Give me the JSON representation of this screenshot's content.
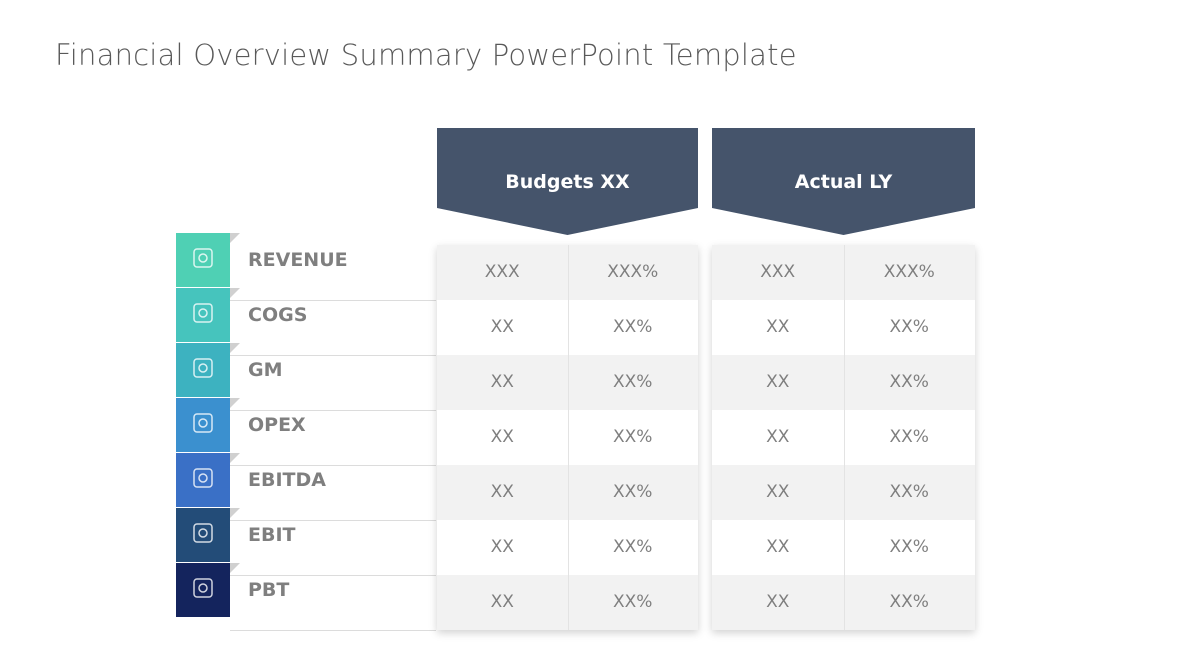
{
  "title": "Financial Overview Summary PowerPoint Template",
  "table": {
    "headers": [
      "Budgets XX",
      "Actual LY"
    ],
    "rows": [
      {
        "label": "REVENUE",
        "cells": [
          "XXX",
          "XXX%",
          "XXX",
          "XXX%"
        ]
      },
      {
        "label": "COGS",
        "cells": [
          "XX",
          "XX%",
          "XX",
          "XX%"
        ]
      },
      {
        "label": "GM",
        "cells": [
          "XX",
          "XX%",
          "XX",
          "XX%"
        ]
      },
      {
        "label": "OPEX",
        "cells": [
          "XX",
          "XX%",
          "XX",
          "XX%"
        ]
      },
      {
        "label": "EBITDA",
        "cells": [
          "XX",
          "XX%",
          "XX",
          "XX%"
        ]
      },
      {
        "label": "EBIT",
        "cells": [
          "XX",
          "XX%",
          "XX",
          "XX%"
        ]
      },
      {
        "label": "PBT",
        "cells": [
          "XX",
          "XX%",
          "XX",
          "XX%"
        ]
      }
    ]
  }
}
